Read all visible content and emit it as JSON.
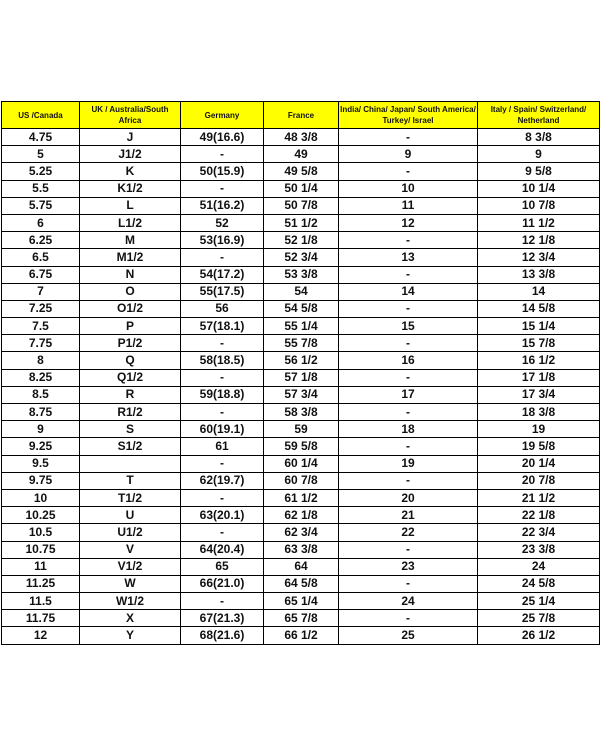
{
  "header_color": "#ffff00",
  "columns": [
    "US /Canada",
    "UK / Australia/South Africa",
    "Germany",
    "France",
    "India/ China/ Japan/ South America/ Turkey/ Israel",
    "Italy / Spain/ Switzerland/ Netherland"
  ],
  "rows": [
    [
      "4.75",
      "J",
      "49(16.6)",
      "48 3/8",
      "-",
      "8 3/8"
    ],
    [
      "5",
      "J1/2",
      "-",
      "49",
      "9",
      "9"
    ],
    [
      "5.25",
      "K",
      "50(15.9)",
      "49 5/8",
      "-",
      "9 5/8"
    ],
    [
      "5.5",
      "K1/2",
      "-",
      "50 1/4",
      "10",
      "10 1/4"
    ],
    [
      "5.75",
      "L",
      "51(16.2)",
      "50 7/8",
      "11",
      "10 7/8"
    ],
    [
      "6",
      "L1/2",
      "52",
      "51 1/2",
      "12",
      "11 1/2"
    ],
    [
      "6.25",
      "M",
      "53(16.9)",
      "52 1/8",
      "-",
      "12 1/8"
    ],
    [
      "6.5",
      "M1/2",
      "-",
      "52 3/4",
      "13",
      "12 3/4"
    ],
    [
      "6.75",
      "N",
      "54(17.2)",
      "53 3/8",
      "-",
      "13 3/8"
    ],
    [
      "7",
      "O",
      "55(17.5)",
      "54",
      "14",
      "14"
    ],
    [
      "7.25",
      "O1/2",
      "56",
      "54 5/8",
      "-",
      "14 5/8"
    ],
    [
      "7.5",
      "P",
      "57(18.1)",
      "55 1/4",
      "15",
      "15 1/4"
    ],
    [
      "7.75",
      "P1/2",
      "-",
      "55 7/8",
      "-",
      "15 7/8"
    ],
    [
      "8",
      "Q",
      "58(18.5)",
      "56 1/2",
      "16",
      "16 1/2"
    ],
    [
      "8.25",
      "Q1/2",
      "-",
      "57 1/8",
      "-",
      "17 1/8"
    ],
    [
      "8.5",
      "R",
      "59(18.8)",
      "57 3/4",
      "17",
      "17 3/4"
    ],
    [
      "8.75",
      "R1/2",
      "-",
      "58 3/8",
      "-",
      "18 3/8"
    ],
    [
      "9",
      "S",
      "60(19.1)",
      "59",
      "18",
      "19"
    ],
    [
      "9.25",
      "S1/2",
      "61",
      "59 5/8",
      "-",
      "19 5/8"
    ],
    [
      "9.5",
      "",
      "-",
      "60 1/4",
      "19",
      "20 1/4"
    ],
    [
      "9.75",
      "T",
      "62(19.7)",
      "60 7/8",
      "-",
      "20 7/8"
    ],
    [
      "10",
      "T1/2",
      "-",
      "61 1/2",
      "20",
      "21 1/2"
    ],
    [
      "10.25",
      "U",
      "63(20.1)",
      "62 1/8",
      "21",
      "22 1/8"
    ],
    [
      "10.5",
      "U1/2",
      "-",
      "62 3/4",
      "22",
      "22 3/4"
    ],
    [
      "10.75",
      "V",
      "64(20.4)",
      "63 3/8",
      "-",
      "23 3/8"
    ],
    [
      "11",
      "V1/2",
      "65",
      "64",
      "23",
      "24"
    ],
    [
      "11.25",
      "W",
      "66(21.0)",
      "64 5/8",
      "-",
      "24 5/8"
    ],
    [
      "11.5",
      "W1/2",
      "-",
      "65 1/4",
      "24",
      "25 1/4"
    ],
    [
      "11.75",
      "X",
      "67(21.3)",
      "65 7/8",
      "-",
      "25 7/8"
    ],
    [
      "12",
      "Y",
      "68(21.6)",
      "66 1/2",
      "25",
      "26 1/2"
    ]
  ]
}
